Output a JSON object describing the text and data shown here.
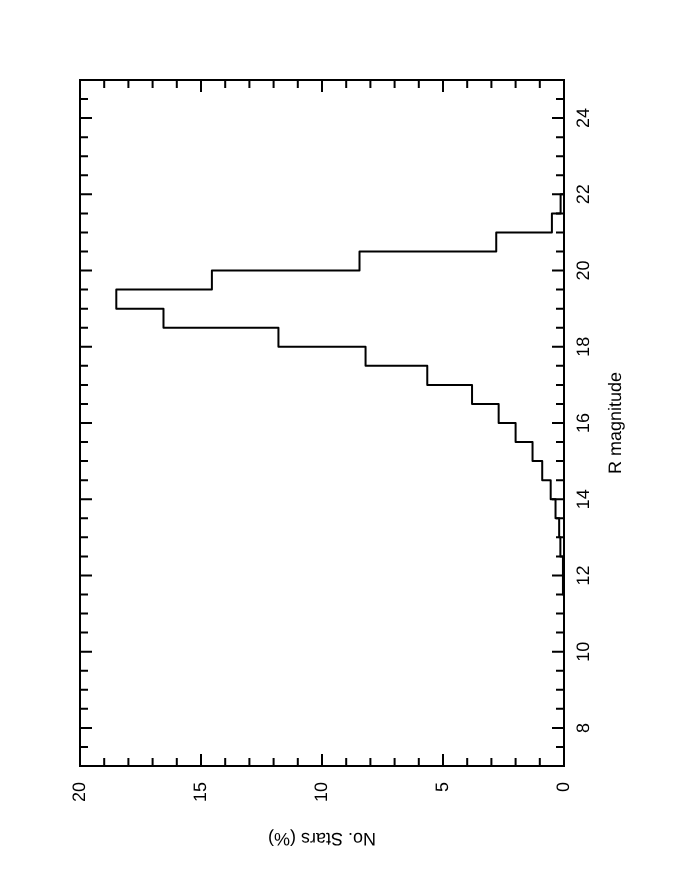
{
  "chart_data": {
    "type": "histogram",
    "orientation": "horizontal",
    "xlabel": "No. Stars (%)",
    "ylabel": "R magnitude",
    "bins": [
      11.5,
      12,
      12.5,
      13,
      13.5,
      14,
      14.5,
      15,
      15.5,
      16,
      16.5,
      17,
      17.5,
      18,
      18.5,
      19,
      19.5,
      20,
      20.5,
      21,
      21.5,
      22
    ],
    "values": [
      0.03,
      0.05,
      0.15,
      0.2,
      0.35,
      0.55,
      0.9,
      1.3,
      2.0,
      2.7,
      3.8,
      5.65,
      8.2,
      11.8,
      16.55,
      18.5,
      14.55,
      8.45,
      2.8,
      0.5,
      0.14
    ],
    "color": "#000000",
    "xlim": [
      20,
      0
    ],
    "xticks": [
      20,
      {
        "value": 19,
        "label": null
      },
      {
        "value": 18,
        "label": null
      },
      {
        "value": 17,
        "label": null
      },
      {
        "value": 16,
        "label": null
      },
      15,
      {
        "value": 14,
        "label": null
      },
      {
        "value": 13,
        "label": null
      },
      {
        "value": 12,
        "label": null
      },
      {
        "value": 11,
        "label": null
      },
      10,
      {
        "value": 9,
        "label": null
      },
      {
        "value": 8,
        "label": null
      },
      {
        "value": 7,
        "label": null
      },
      {
        "value": 6,
        "label": null
      },
      5,
      {
        "value": 4,
        "label": null
      },
      {
        "value": 3,
        "label": null
      },
      {
        "value": 2,
        "label": null
      },
      {
        "value": 1,
        "label": null
      },
      0
    ],
    "ylim": [
      7,
      25
    ],
    "yticks": [
      {
        "value": 7.5,
        "label": null
      },
      8,
      {
        "value": 8.5,
        "label": null
      },
      {
        "value": 9,
        "label": null
      },
      {
        "value": 9.5,
        "label": null
      },
      10,
      {
        "value": 10.5,
        "label": null
      },
      {
        "value": 11,
        "label": null
      },
      {
        "value": 11.5,
        "label": null
      },
      12,
      {
        "value": 12.5,
        "label": null
      },
      {
        "value": 13,
        "label": null
      },
      {
        "value": 13.5,
        "label": null
      },
      14,
      {
        "value": 14.5,
        "label": null
      },
      {
        "value": 15,
        "label": null
      },
      {
        "value": 15.5,
        "label": null
      },
      16,
      {
        "value": 16.5,
        "label": null
      },
      {
        "value": 17,
        "label": null
      },
      {
        "value": 17.5,
        "label": null
      },
      18,
      {
        "value": 18.5,
        "label": null
      },
      {
        "value": 19,
        "label": null
      },
      {
        "value": 19.5,
        "label": null
      },
      20,
      {
        "value": 20.5,
        "label": null
      },
      {
        "value": 21,
        "label": null
      },
      {
        "value": 21.5,
        "label": null
      },
      22,
      {
        "value": 22.5,
        "label": null
      },
      {
        "value": 23,
        "label": null
      },
      {
        "value": 23.5,
        "label": null
      },
      24,
      {
        "value": 24.5,
        "label": null
      }
    ],
    "grid": false,
    "legend": false
  }
}
